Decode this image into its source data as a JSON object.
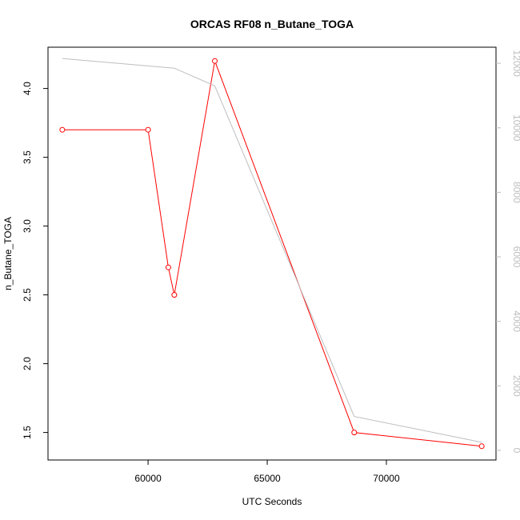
{
  "chart_data": {
    "type": "line",
    "title": "ORCAS RF08 n_Butane_TOGA",
    "xlabel": "UTC Seconds",
    "ylabel": "n_Butane_TOGA",
    "xlim": [
      55800,
      74600
    ],
    "ylim": [
      1.3,
      4.3
    ],
    "y2lim": [
      -300,
      12500
    ],
    "x_ticks": [
      60000,
      65000,
      70000
    ],
    "y_ticks": [
      1.5,
      2.0,
      2.5,
      3.0,
      3.5,
      4.0
    ],
    "y_tick_labels": [
      "1.5",
      "2.0",
      "2.5",
      "3.0",
      "3.5",
      "4.0"
    ],
    "y2_ticks": [
      0,
      2000,
      4000,
      6000,
      8000,
      10000,
      12000
    ],
    "series": [
      {
        "axis": "left",
        "color": "#ff0000",
        "markers": true,
        "x": [
          56400,
          60000,
          60850,
          61100,
          62800,
          68650,
          74000
        ],
        "y": [
          3.7,
          3.7,
          2.7,
          2.5,
          4.2,
          1.5,
          1.4
        ]
      },
      {
        "axis": "right",
        "color": "#bebebe",
        "markers": false,
        "x": [
          56400,
          61100,
          62800,
          68650,
          74000
        ],
        "y": [
          12150,
          11850,
          11300,
          1050,
          250
        ]
      }
    ]
  }
}
